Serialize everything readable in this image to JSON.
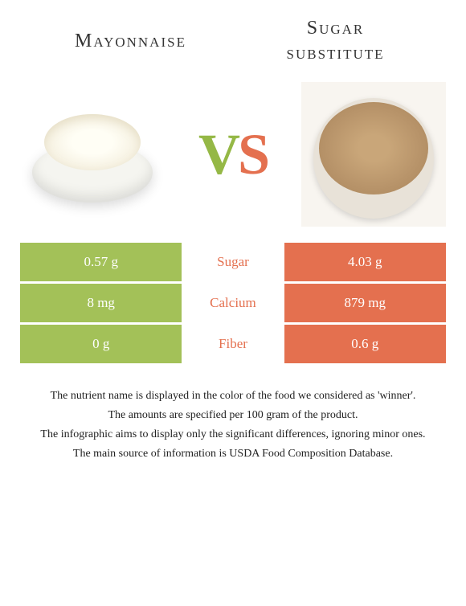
{
  "titles": {
    "left": "Mayonnaise",
    "right_line1": "Sugar",
    "right_line2": "substitute"
  },
  "vs": {
    "v": "V",
    "s": "S"
  },
  "colors": {
    "left_bg": "#a3c158",
    "right_bg": "#e4704f",
    "mid_text": "#e4704f",
    "cell_text": "#ffffff"
  },
  "rows": [
    {
      "left": "0.57 g",
      "label": "Sugar",
      "right": "4.03 g"
    },
    {
      "left": "8 mg",
      "label": "Calcium",
      "right": "879 mg"
    },
    {
      "left": "0 g",
      "label": "Fiber",
      "right": "0.6 g"
    }
  ],
  "footnotes": [
    "The nutrient name is displayed in the color of the food we considered as 'winner'.",
    "The amounts are specified per 100 gram of the product.",
    "The infographic aims to display only the significant differences, ignoring minor ones.",
    "The main source of information is USDA Food Composition Database."
  ]
}
